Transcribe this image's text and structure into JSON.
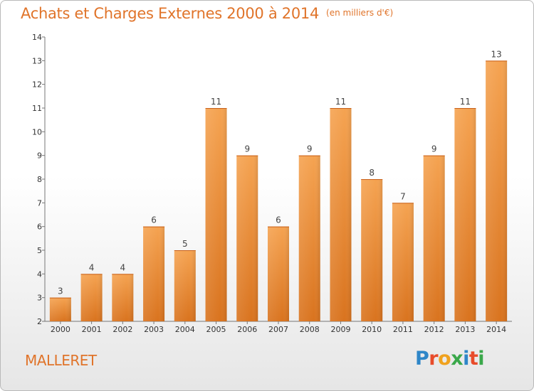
{
  "title": "Achats et Charges Externes 2000 à 2014",
  "subtitle": "(en milliers d'€)",
  "commune": "MALLERET",
  "logo": {
    "text": "Proxiti",
    "letters": [
      {
        "ch": "P",
        "color": "#2e86c8"
      },
      {
        "ch": "r",
        "color": "#e84b2a"
      },
      {
        "ch": "o",
        "color": "#f0a21e"
      },
      {
        "ch": "x",
        "color": "#3aa84a"
      },
      {
        "ch": "i",
        "color": "#2e86c8"
      },
      {
        "ch": "t",
        "color": "#e84b2a"
      },
      {
        "ch": "i",
        "color": "#3aa84a"
      }
    ]
  },
  "chart_data": {
    "type": "bar",
    "categories": [
      "2000",
      "2001",
      "2002",
      "2003",
      "2004",
      "2005",
      "2006",
      "2007",
      "2008",
      "2009",
      "2010",
      "2011",
      "2012",
      "2013",
      "2014"
    ],
    "values": [
      3,
      4,
      4,
      6,
      5,
      11,
      9,
      6,
      9,
      11,
      8,
      7,
      9,
      11,
      13
    ],
    "ylim": [
      2,
      14
    ],
    "yticks": [
      2,
      3,
      4,
      5,
      6,
      7,
      8,
      9,
      10,
      11,
      12,
      13,
      14
    ],
    "grid": false,
    "bar_color_top": "#f5a351",
    "bar_color_bottom": "#d9731e"
  }
}
